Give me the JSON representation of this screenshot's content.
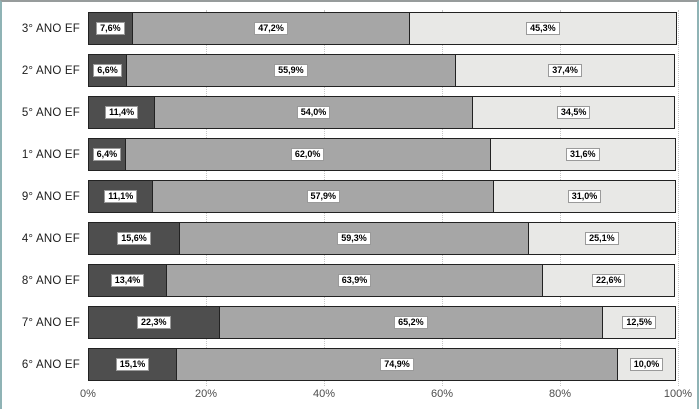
{
  "chart_data": {
    "type": "bar",
    "orientation": "horizontal",
    "stacked": true,
    "title": "",
    "legend": "none",
    "grid": "dotted-vertical",
    "xlim": [
      0,
      100
    ],
    "x_ticks": [
      "0%",
      "20%",
      "40%",
      "60%",
      "80%",
      "100%"
    ],
    "x_tick_values": [
      0,
      20,
      40,
      60,
      80,
      100
    ],
    "categories": [
      "3° ANO EF",
      "2° ANO EF",
      "5° ANO EF",
      "1° ANO EF",
      "9° ANO EF",
      "4° ANO EF",
      "8° ANO EF",
      "7° ANO EF",
      "6° ANO EF"
    ],
    "series": [
      {
        "name": "segment-dark",
        "color": "#4e4e4e",
        "values": [
          7.6,
          6.6,
          11.4,
          6.4,
          11.1,
          15.6,
          13.4,
          22.3,
          15.1
        ],
        "labels": [
          "7,6%",
          "6,6%",
          "11,4%",
          "6,4%",
          "11,1%",
          "15,6%",
          "13,4%",
          "22,3%",
          "15,1%"
        ]
      },
      {
        "name": "segment-medium",
        "color": "#a6a6a6",
        "values": [
          47.2,
          55.9,
          54.0,
          62.0,
          57.9,
          59.3,
          63.9,
          65.2,
          74.9
        ],
        "labels": [
          "47,2%",
          "55,9%",
          "54,0%",
          "62,0%",
          "57,9%",
          "59,3%",
          "63,9%",
          "65,2%",
          "74,9%"
        ]
      },
      {
        "name": "segment-light",
        "color": "#e8e8e6",
        "values": [
          45.3,
          37.4,
          34.5,
          31.6,
          31.0,
          25.1,
          22.6,
          12.5,
          10.0
        ],
        "labels": [
          "45,3%",
          "37,4%",
          "34,5%",
          "31,6%",
          "31,0%",
          "25,1%",
          "22,6%",
          "12,5%",
          "10,0%"
        ]
      }
    ]
  },
  "colors": {
    "bar_border": "#222222",
    "gridline": "#c6c6c6",
    "frame_side_border": "#8fb3b5",
    "frame_top_border": "#979c9c",
    "label_box_bg": "#ffffff",
    "label_box_border": "#9a9a9a",
    "tick_text": "#4d4d4d",
    "category_text": "#1c1c1c"
  }
}
